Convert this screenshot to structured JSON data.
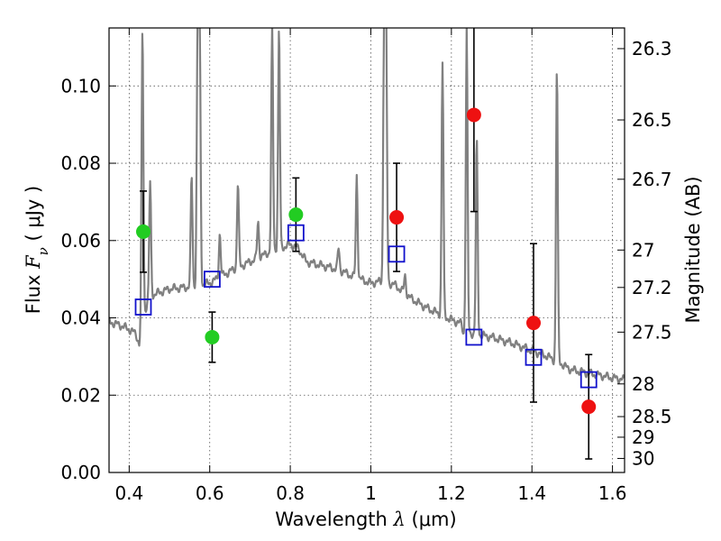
{
  "chart_data": {
    "type": "scatter",
    "xlabel": {
      "prefix": "Wavelength  ",
      "symbol": "λ",
      "suffix": " (μm)"
    },
    "ylabel": {
      "prefix": "Flux  ",
      "symbol": "F",
      "subscript": "ν",
      "suffix": " ( μJy )"
    },
    "ylabel_right": "Magnitude (AB)",
    "xlim": [
      0.35,
      1.63
    ],
    "ylim": [
      0.0,
      0.115
    ],
    "x_ticks": [
      0.4,
      0.6,
      0.8,
      1.0,
      1.2,
      1.4,
      1.6
    ],
    "x_tick_labels": [
      "0.4",
      "0.6",
      "0.8",
      "1",
      "1.2",
      "1.4",
      "1.6"
    ],
    "y_ticks": [
      0.0,
      0.02,
      0.04,
      0.06,
      0.08,
      0.1
    ],
    "y_tick_labels": [
      "0.00",
      "0.02",
      "0.04",
      "0.06",
      "0.08",
      "0.10"
    ],
    "right_ticks": [
      {
        "mag": 26.3,
        "label": "26.3"
      },
      {
        "mag": 26.5,
        "label": "26.5"
      },
      {
        "mag": 26.7,
        "label": "26.7"
      },
      {
        "mag": 27.0,
        "label": "27"
      },
      {
        "mag": 27.2,
        "label": "27.2"
      },
      {
        "mag": 27.5,
        "label": "27.5"
      },
      {
        "mag": 28.0,
        "label": "28"
      },
      {
        "mag": 28.5,
        "label": "28.5"
      },
      {
        "mag": 29.0,
        "label": "29"
      },
      {
        "mag": 30.0,
        "label": "30"
      }
    ],
    "grid": true,
    "colors": {
      "model": "#808080",
      "green": "#22cc22",
      "red": "#ee1111",
      "square": "#1111cc",
      "errorbar": "#000000"
    },
    "green_points": [
      {
        "x": 0.435,
        "y": 0.0623,
        "err": 0.0105
      },
      {
        "x": 0.606,
        "y": 0.035,
        "err": 0.0065
      },
      {
        "x": 0.814,
        "y": 0.0667,
        "err": 0.0095
      }
    ],
    "red_points": [
      {
        "x": 1.064,
        "y": 0.066,
        "err": 0.014
      },
      {
        "x": 1.256,
        "y": 0.0925,
        "err": 0.025
      },
      {
        "x": 1.404,
        "y": 0.0387,
        "err": 0.0205
      },
      {
        "x": 1.541,
        "y": 0.017,
        "err": 0.0135
      }
    ],
    "model_photometry": [
      {
        "x": 0.435,
        "y": 0.0428
      },
      {
        "x": 0.606,
        "y": 0.05
      },
      {
        "x": 0.814,
        "y": 0.062
      },
      {
        "x": 1.064,
        "y": 0.0565
      },
      {
        "x": 1.256,
        "y": 0.035
      },
      {
        "x": 1.404,
        "y": 0.0298
      },
      {
        "x": 1.541,
        "y": 0.024
      }
    ],
    "model_continuum": [
      [
        0.35,
        0.039
      ],
      [
        0.38,
        0.038
      ],
      [
        0.4,
        0.037
      ],
      [
        0.415,
        0.036
      ],
      [
        0.425,
        0.034
      ],
      [
        0.43,
        0.0375
      ],
      [
        0.445,
        0.044
      ],
      [
        0.46,
        0.046
      ],
      [
        0.5,
        0.0475
      ],
      [
        0.55,
        0.048
      ],
      [
        0.6,
        0.049
      ],
      [
        0.65,
        0.052
      ],
      [
        0.7,
        0.0545
      ],
      [
        0.75,
        0.057
      ],
      [
        0.8,
        0.059
      ],
      [
        0.82,
        0.058
      ],
      [
        0.84,
        0.0545
      ],
      [
        0.88,
        0.0535
      ],
      [
        0.92,
        0.0525
      ],
      [
        0.96,
        0.0505
      ],
      [
        1.0,
        0.049
      ],
      [
        1.03,
        0.0495
      ],
      [
        1.06,
        0.0485
      ],
      [
        1.1,
        0.045
      ],
      [
        1.14,
        0.0425
      ],
      [
        1.2,
        0.0395
      ],
      [
        1.225,
        0.0385
      ],
      [
        1.23,
        0.036
      ],
      [
        1.25,
        0.036
      ],
      [
        1.3,
        0.035
      ],
      [
        1.35,
        0.0335
      ],
      [
        1.4,
        0.0315
      ],
      [
        1.44,
        0.03
      ],
      [
        1.455,
        0.029
      ],
      [
        1.47,
        0.0285
      ],
      [
        1.48,
        0.0275
      ],
      [
        1.5,
        0.0265
      ],
      [
        1.55,
        0.0255
      ],
      [
        1.6,
        0.0245
      ],
      [
        1.63,
        0.024
      ]
    ],
    "model_lines": [
      {
        "x": 0.425,
        "peak": 0.033
      },
      {
        "x": 0.433,
        "peak": 0.115
      },
      {
        "x": 0.452,
        "peak": 0.075
      },
      {
        "x": 0.555,
        "peak": 0.077
      },
      {
        "x": 0.57,
        "peak": 0.115
      },
      {
        "x": 0.575,
        "peak": 0.115
      },
      {
        "x": 0.625,
        "peak": 0.062
      },
      {
        "x": 0.67,
        "peak": 0.075
      },
      {
        "x": 0.72,
        "peak": 0.065
      },
      {
        "x": 0.755,
        "peak": 0.115
      },
      {
        "x": 0.772,
        "peak": 0.115
      },
      {
        "x": 0.92,
        "peak": 0.058
      },
      {
        "x": 0.965,
        "peak": 0.077
      },
      {
        "x": 1.033,
        "peak": 0.115
      },
      {
        "x": 1.038,
        "peak": 0.115
      },
      {
        "x": 1.085,
        "peak": 0.051
      },
      {
        "x": 1.178,
        "peak": 0.106
      },
      {
        "x": 1.238,
        "peak": 0.115
      },
      {
        "x": 1.263,
        "peak": 0.086
      },
      {
        "x": 1.462,
        "peak": 0.105
      }
    ]
  }
}
